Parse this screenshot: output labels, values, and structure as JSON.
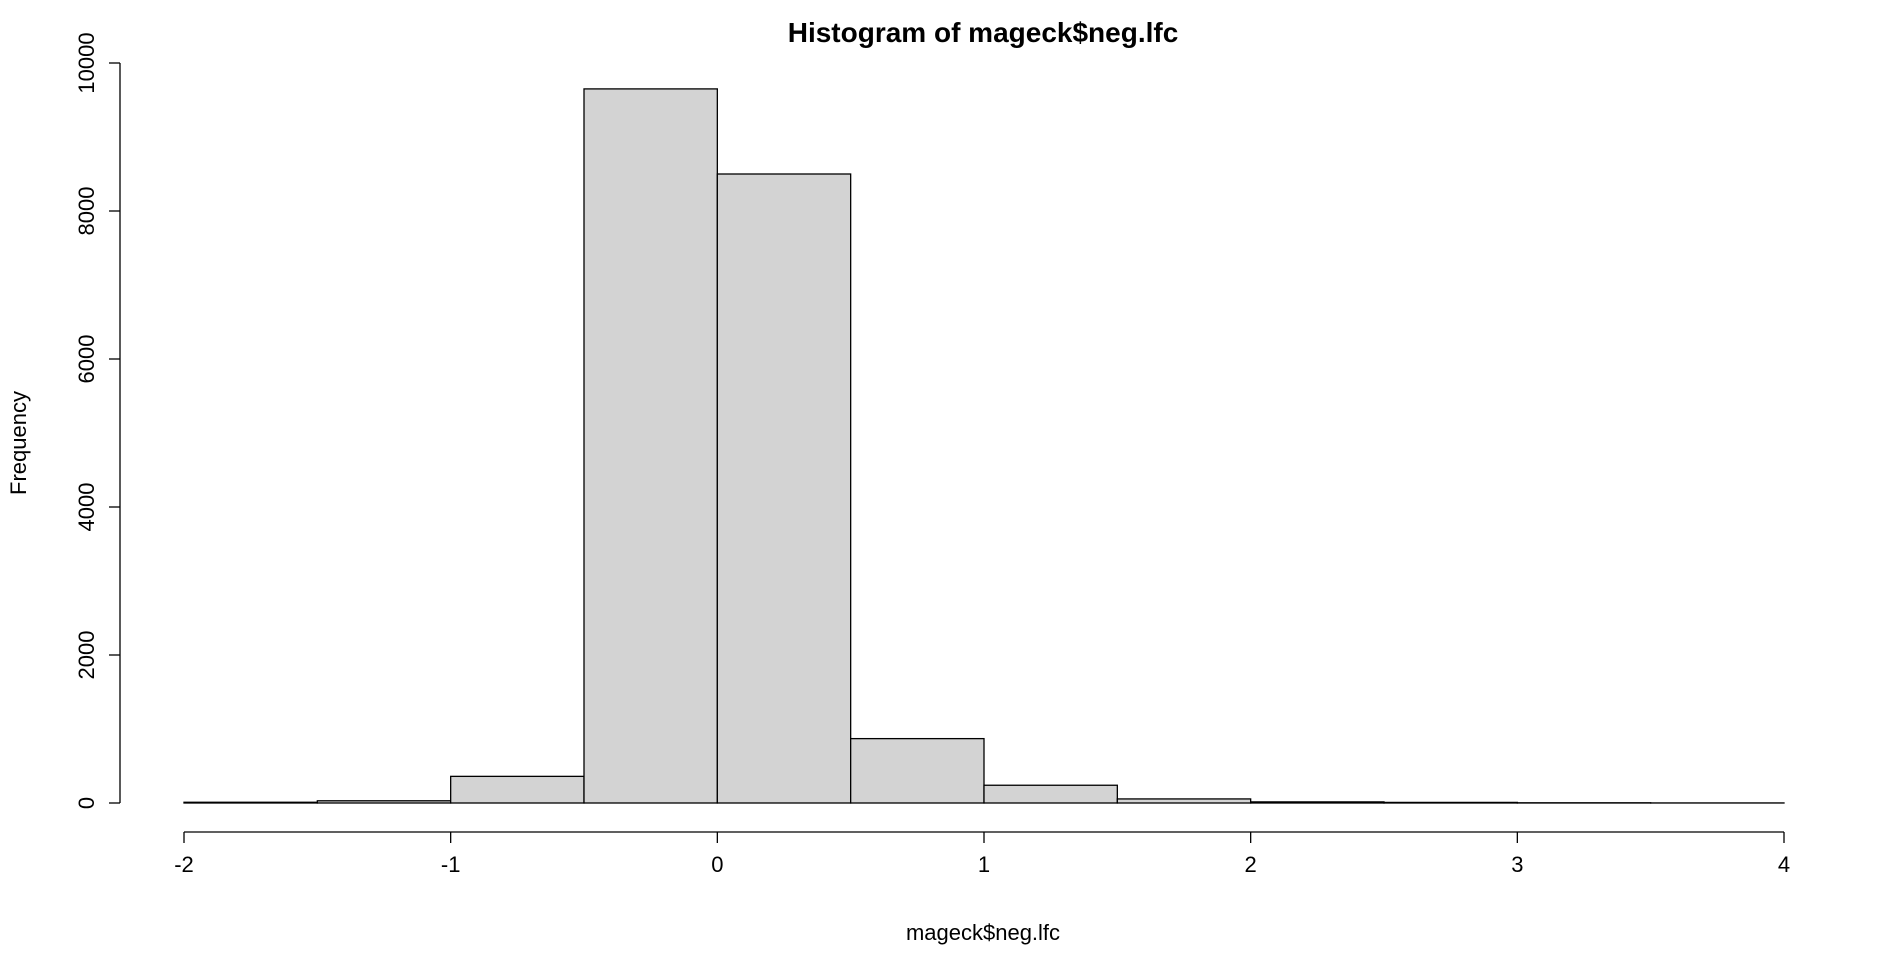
{
  "chart_data": {
    "type": "bar",
    "title": "Histogram of mageck$neg.lfc",
    "xlabel": "mageck$neg.lfc",
    "ylabel": "Frequency",
    "bin_edges": [
      -2,
      -1.5,
      -1,
      -0.5,
      0,
      0.5,
      1,
      1.5,
      2,
      2.5,
      3,
      3.5,
      4
    ],
    "values": [
      10,
      30,
      360,
      9650,
      8500,
      870,
      240,
      55,
      15,
      8,
      3,
      1
    ],
    "xlim": [
      -2,
      4
    ],
    "ylim": [
      0,
      10000
    ],
    "x_ticks": [
      -2,
      -1,
      0,
      1,
      2,
      3,
      4
    ],
    "x_tick_labels": [
      "-2",
      "-1",
      "0",
      "1",
      "2",
      "3",
      "4"
    ],
    "y_ticks": [
      0,
      2000,
      4000,
      6000,
      8000,
      10000
    ],
    "y_tick_labels": [
      "0",
      "2000",
      "4000",
      "6000",
      "8000",
      "10000"
    ],
    "bar_fill": "#d3d3d3",
    "bar_stroke": "#000000",
    "grid": false
  }
}
